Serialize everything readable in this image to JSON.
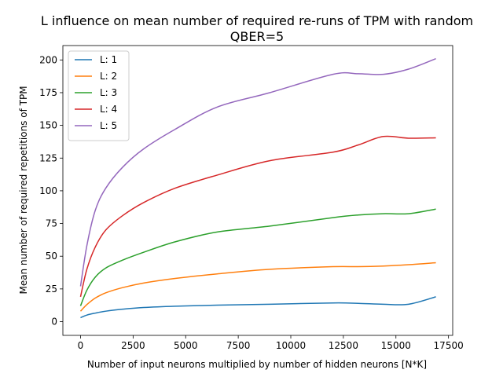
{
  "chart_data": {
    "type": "line",
    "title": [
      "L influence on mean number of required re-runs of TPM with random",
      "QBER=5"
    ],
    "xlabel": "Number of input neurons multiplied by number of hidden neurons [N*K]",
    "ylabel": "Mean number of required repetitions of TPM",
    "xlim": [
      -840,
      17700
    ],
    "ylim": [
      -10.5,
      211
    ],
    "xticks": [
      0,
      2500,
      5000,
      7500,
      10000,
      12500,
      15000,
      17500
    ],
    "xtick_labels": [
      "0",
      "2500",
      "5000",
      "7500",
      "10000",
      "12500",
      "15000",
      "17500"
    ],
    "yticks": [
      0,
      25,
      50,
      75,
      100,
      125,
      150,
      175,
      200
    ],
    "ytick_labels": [
      "0",
      "25",
      "50",
      "75",
      "100",
      "125",
      "150",
      "175",
      "200"
    ],
    "grid": false,
    "legend_position": "top-left",
    "series": [
      {
        "name": "L: 1",
        "color": "#1f77b4",
        "x": [
          0,
          300,
          700,
          1200,
          2000,
          3000,
          4500,
          6500,
          9000,
          12000,
          13200,
          14400,
          15600,
          16900
        ],
        "y": [
          3,
          5,
          6.5,
          8,
          9.5,
          10.8,
          11.8,
          12.6,
          13.3,
          14.3,
          14.0,
          13.3,
          13.3,
          19
        ]
      },
      {
        "name": "L: 2",
        "color": "#ff7f0e",
        "x": [
          0,
          300,
          700,
          1200,
          2000,
          3000,
          4500,
          6500,
          9000,
          12000,
          13200,
          14400,
          15600,
          16900
        ],
        "y": [
          8,
          13,
          18,
          22,
          26,
          29.5,
          33,
          36.5,
          40,
          42,
          42,
          42.5,
          43.5,
          45
        ]
      },
      {
        "name": "L: 3",
        "color": "#2ca02c",
        "x": [
          0,
          300,
          700,
          1200,
          2000,
          3000,
          4500,
          6500,
          9000,
          12000,
          13200,
          14400,
          15600,
          16900
        ],
        "y": [
          12,
          24,
          34,
          41,
          47,
          53,
          61,
          68.5,
          73,
          79.5,
          81.5,
          82.5,
          82.5,
          86
        ]
      },
      {
        "name": "L: 4",
        "color": "#d62728",
        "x": [
          0,
          300,
          700,
          1200,
          2000,
          3000,
          4500,
          6500,
          9000,
          12000,
          13200,
          14400,
          15600,
          16900
        ],
        "y": [
          19,
          40,
          57,
          70,
          81,
          91,
          102,
          112,
          123,
          129.5,
          135,
          141.5,
          140.2,
          140.5
        ]
      },
      {
        "name": "L: 5",
        "color": "#9467bd",
        "x": [
          0,
          300,
          700,
          1200,
          2000,
          3000,
          4500,
          6500,
          9000,
          12000,
          13200,
          14400,
          15600,
          16900
        ],
        "y": [
          27,
          58,
          85,
          102,
          118,
          132,
          147,
          164,
          175,
          189,
          189.5,
          189,
          193,
          201
        ]
      }
    ]
  }
}
